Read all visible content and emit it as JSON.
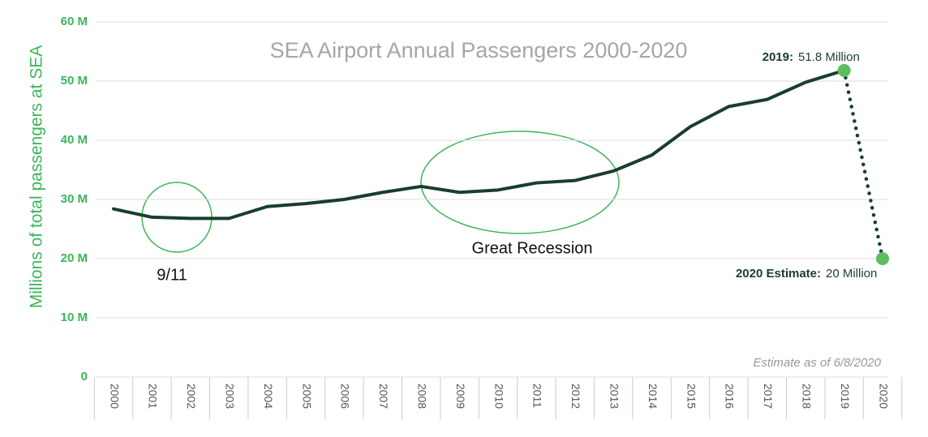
{
  "chart_data": {
    "type": "line",
    "title": "SEA Airport Annual Passengers 2000-2020",
    "y_axis_label": "Millions of total passengers at SEA",
    "categories": [
      "2000",
      "2001",
      "2002",
      "2003",
      "2004",
      "2005",
      "2006",
      "2007",
      "2008",
      "2009",
      "2010",
      "2011",
      "2012",
      "2013",
      "2014",
      "2015",
      "2016",
      "2017",
      "2018",
      "2019",
      "2020"
    ],
    "series": [
      {
        "color": "#1a3d2e",
        "values": [
          28.4,
          27.0,
          26.8,
          26.8,
          28.8,
          29.3,
          30.0,
          31.2,
          32.2,
          31.2,
          31.6,
          32.8,
          33.2,
          34.8,
          37.5,
          42.3,
          45.7,
          46.9,
          49.8,
          51.8,
          20
        ],
        "value_labels": [
          null,
          null,
          null,
          null,
          null,
          null,
          null,
          null,
          null,
          null,
          null,
          null,
          null,
          null,
          null,
          null,
          null,
          null,
          null,
          "51.8 Million",
          "20 Million"
        ],
        "dotted_from_index": 19,
        "marker_color": "#5cbf5c"
      }
    ],
    "ylim": [
      0,
      60
    ],
    "yticks": [
      0,
      {
        "value": 10,
        "label": "10 M"
      },
      {
        "value": 20,
        "label": "20 M"
      },
      {
        "value": 30,
        "label": "30 M"
      },
      {
        "value": 40,
        "label": "40 M"
      },
      {
        "value": 50,
        "label": "50 M"
      },
      {
        "value": 60,
        "label": "60 M"
      }
    ],
    "grid": true,
    "annotations": {
      "label_2019": "2019:",
      "label_2020": "2020 Estimate:",
      "event_911": "9/11",
      "event_recession": "Great Recession",
      "note": "Estimate as of 6/8/2020"
    }
  }
}
